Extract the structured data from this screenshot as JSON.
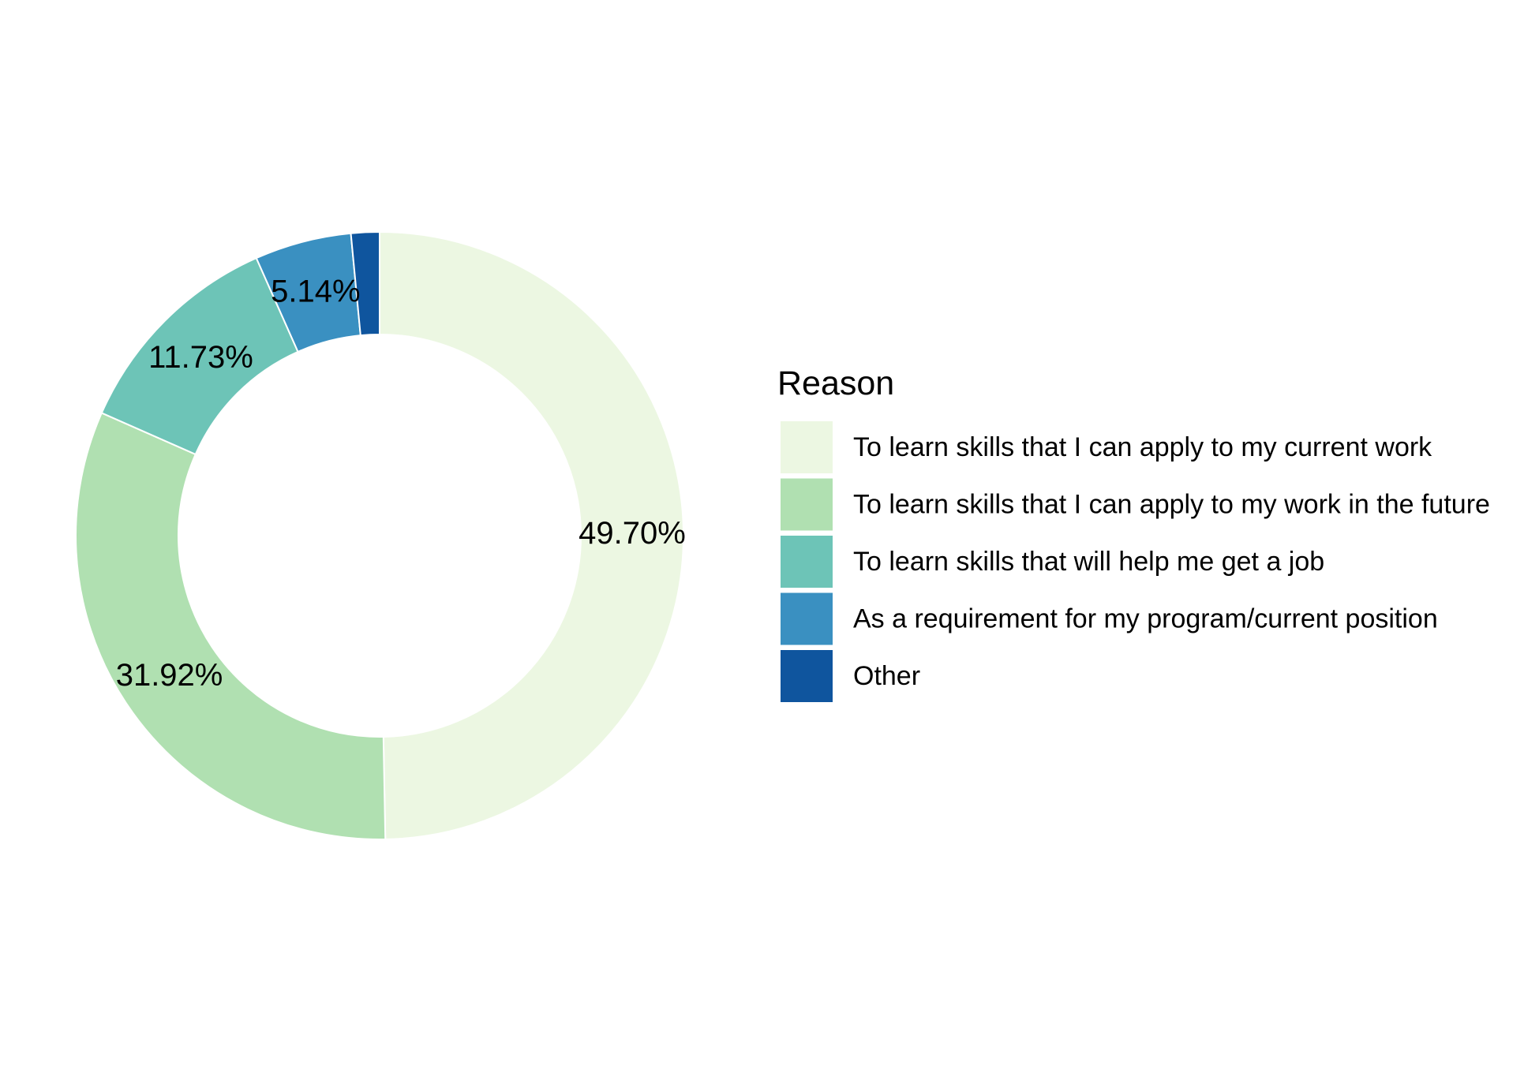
{
  "chart_data": {
    "type": "pie",
    "variant": "donut",
    "legend_title": "Reason",
    "legend_position": "right",
    "slices": [
      {
        "label": "To learn skills that I can apply to my current work",
        "value": 49.7,
        "display": "49.70%",
        "color": "#ECF7E2"
      },
      {
        "label": "To learn skills that I can apply to my work in the future",
        "value": 31.92,
        "display": "31.92%",
        "color": "#B0E0B1"
      },
      {
        "label": "To learn skills that will help me get a job",
        "value": 11.73,
        "display": "11.73%",
        "color": "#6DC4B7"
      },
      {
        "label": "As a requirement for my program/current position",
        "value": 5.14,
        "display": "5.14%",
        "color": "#3A90C1"
      },
      {
        "label": "Other",
        "value": 1.51,
        "display": "",
        "color": "#0F559E"
      }
    ]
  }
}
